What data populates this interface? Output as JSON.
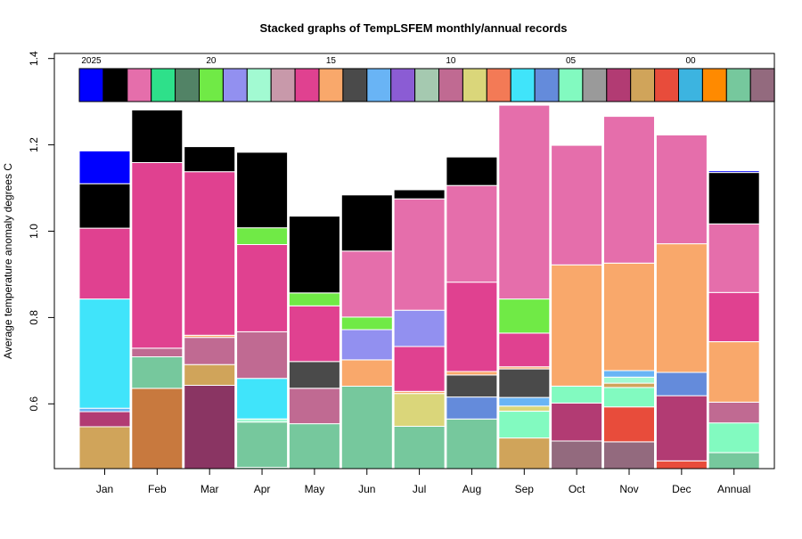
{
  "chart_data": {
    "type": "bar",
    "stacked": true,
    "title": "Stacked graphs of TempLSFEM monthly/annual records",
    "ylabel": "Average temperature anomaly degrees C",
    "xlabel": "",
    "ylim": [
      0.45,
      1.4
    ],
    "yticks": [
      "0.6",
      "0.8",
      "1.0",
      "1.2",
      "1.4"
    ],
    "categories": [
      "Jan",
      "Feb",
      "Mar",
      "Apr",
      "May",
      "Jun",
      "Jul",
      "Aug",
      "Sep",
      "Oct",
      "Nov",
      "Dec",
      "Annual"
    ],
    "legend": {
      "placement": "top",
      "year_labels": [
        "2025",
        "20",
        "15",
        "10",
        "05",
        "00"
      ],
      "colors": [
        "#0000ff",
        "#000000",
        "#e56eab",
        "#2ee08a",
        "#528366",
        "#70ea46",
        "#9290f0",
        "#a2fad2",
        "#c899aa",
        "#e04190",
        "#f9a86b",
        "#4a4a4a",
        "#69b4f5",
        "#8b5cd4",
        "#a5c9b0",
        "#c06a92",
        "#dad67a",
        "#f37a56",
        "#40e4fa",
        "#648bdb",
        "#82fac0",
        "#9a9a9a",
        "#b23b73",
        "#d0a45a",
        "#e84c3b",
        "#3cb4e0",
        "#ff8a00",
        "#76c89d",
        "#936a7e"
      ]
    },
    "stacks": [
      {
        "category": "Jan",
        "segments": [
          {
            "from": 0.45,
            "to": 0.547,
            "color": "#d0a45a"
          },
          {
            "from": 0.547,
            "to": 0.582,
            "color": "#b23b73"
          },
          {
            "from": 0.582,
            "to": 0.59,
            "color": "#69b4f5"
          },
          {
            "from": 0.59,
            "to": 0.843,
            "color": "#40e4fa"
          },
          {
            "from": 0.843,
            "to": 1.007,
            "color": "#e04190"
          },
          {
            "from": 1.007,
            "to": 1.11,
            "color": "#000000"
          },
          {
            "from": 1.11,
            "to": 1.186,
            "color": "#0000ff"
          }
        ]
      },
      {
        "category": "Feb",
        "segments": [
          {
            "from": 0.45,
            "to": 0.636,
            "color": "#c8793e"
          },
          {
            "from": 0.636,
            "to": 0.709,
            "color": "#76c89d"
          },
          {
            "from": 0.709,
            "to": 0.729,
            "color": "#c06a92"
          },
          {
            "from": 0.729,
            "to": 1.159,
            "color": "#e04190"
          },
          {
            "from": 1.159,
            "to": 1.281,
            "color": "#000000"
          }
        ]
      },
      {
        "category": "Mar",
        "segments": [
          {
            "from": 0.45,
            "to": 0.643,
            "color": "#8a3563"
          },
          {
            "from": 0.643,
            "to": 0.691,
            "color": "#d0a45a"
          },
          {
            "from": 0.691,
            "to": 0.754,
            "color": "#c06a92"
          },
          {
            "from": 0.754,
            "to": 0.759,
            "color": "#f9a86b"
          },
          {
            "from": 0.759,
            "to": 1.138,
            "color": "#e04190"
          },
          {
            "from": 1.138,
            "to": 1.196,
            "color": "#000000"
          }
        ]
      },
      {
        "category": "Apr",
        "segments": [
          {
            "from": 0.45,
            "to": 0.453,
            "color": "#82fac0"
          },
          {
            "from": 0.453,
            "to": 0.558,
            "color": "#76c89d"
          },
          {
            "from": 0.558,
            "to": 0.565,
            "color": "#a2fad2"
          },
          {
            "from": 0.565,
            "to": 0.659,
            "color": "#40e4fa"
          },
          {
            "from": 0.659,
            "to": 0.767,
            "color": "#c06a92"
          },
          {
            "from": 0.767,
            "to": 0.969,
            "color": "#e04190"
          },
          {
            "from": 0.969,
            "to": 1.008,
            "color": "#70ea46"
          },
          {
            "from": 1.008,
            "to": 1.183,
            "color": "#000000"
          }
        ]
      },
      {
        "category": "May",
        "segments": [
          {
            "from": 0.45,
            "to": 0.554,
            "color": "#76c89d"
          },
          {
            "from": 0.554,
            "to": 0.636,
            "color": "#c06a92"
          },
          {
            "from": 0.636,
            "to": 0.698,
            "color": "#4a4a4a"
          },
          {
            "from": 0.698,
            "to": 0.827,
            "color": "#e04190"
          },
          {
            "from": 0.827,
            "to": 0.857,
            "color": "#70ea46"
          },
          {
            "from": 0.857,
            "to": 1.035,
            "color": "#000000"
          }
        ]
      },
      {
        "category": "Jun",
        "segments": [
          {
            "from": 0.45,
            "to": 0.641,
            "color": "#76c89d"
          },
          {
            "from": 0.641,
            "to": 0.702,
            "color": "#f9a86b"
          },
          {
            "from": 0.702,
            "to": 0.772,
            "color": "#9290f0"
          },
          {
            "from": 0.772,
            "to": 0.801,
            "color": "#70ea46"
          },
          {
            "from": 0.801,
            "to": 0.954,
            "color": "#e56eab"
          },
          {
            "from": 0.954,
            "to": 1.084,
            "color": "#000000"
          }
        ]
      },
      {
        "category": "Jul",
        "segments": [
          {
            "from": 0.45,
            "to": 0.548,
            "color": "#76c89d"
          },
          {
            "from": 0.548,
            "to": 0.624,
            "color": "#dad67a"
          },
          {
            "from": 0.624,
            "to": 0.629,
            "color": "#f9a86b"
          },
          {
            "from": 0.629,
            "to": 0.733,
            "color": "#e04190"
          },
          {
            "from": 0.733,
            "to": 0.817,
            "color": "#9290f0"
          },
          {
            "from": 0.817,
            "to": 1.075,
            "color": "#e56eab"
          },
          {
            "from": 1.075,
            "to": 1.096,
            "color": "#000000"
          }
        ]
      },
      {
        "category": "Aug",
        "segments": [
          {
            "from": 0.45,
            "to": 0.565,
            "color": "#76c89d"
          },
          {
            "from": 0.565,
            "to": 0.616,
            "color": "#648bdb"
          },
          {
            "from": 0.616,
            "to": 0.667,
            "color": "#4a4a4a"
          },
          {
            "from": 0.667,
            "to": 0.675,
            "color": "#f9a86b"
          },
          {
            "from": 0.675,
            "to": 0.882,
            "color": "#e04190"
          },
          {
            "from": 0.882,
            "to": 1.106,
            "color": "#e56eab"
          },
          {
            "from": 1.106,
            "to": 1.172,
            "color": "#000000"
          }
        ]
      },
      {
        "category": "Sep",
        "segments": [
          {
            "from": 0.45,
            "to": 0.521,
            "color": "#d0a45a"
          },
          {
            "from": 0.521,
            "to": 0.583,
            "color": "#82fac0"
          },
          {
            "from": 0.583,
            "to": 0.595,
            "color": "#dad67a"
          },
          {
            "from": 0.595,
            "to": 0.615,
            "color": "#69b4f5"
          },
          {
            "from": 0.615,
            "to": 0.681,
            "color": "#4a4a4a"
          },
          {
            "from": 0.681,
            "to": 0.686,
            "color": "#f9a86b"
          },
          {
            "from": 0.686,
            "to": 0.764,
            "color": "#e04190"
          },
          {
            "from": 0.764,
            "to": 0.843,
            "color": "#70ea46"
          },
          {
            "from": 0.843,
            "to": 1.292,
            "color": "#e56eab"
          }
        ]
      },
      {
        "category": "Oct",
        "segments": [
          {
            "from": 0.45,
            "to": 0.514,
            "color": "#936a7e"
          },
          {
            "from": 0.514,
            "to": 0.602,
            "color": "#b23b73"
          },
          {
            "from": 0.602,
            "to": 0.641,
            "color": "#82fac0"
          },
          {
            "from": 0.641,
            "to": 0.922,
            "color": "#f9a86b"
          },
          {
            "from": 0.922,
            "to": 1.199,
            "color": "#e56eab"
          }
        ]
      },
      {
        "category": "Nov",
        "segments": [
          {
            "from": 0.45,
            "to": 0.512,
            "color": "#936a7e"
          },
          {
            "from": 0.512,
            "to": 0.593,
            "color": "#e84c3b"
          },
          {
            "from": 0.593,
            "to": 0.638,
            "color": "#82fac0"
          },
          {
            "from": 0.638,
            "to": 0.648,
            "color": "#d0a45a"
          },
          {
            "from": 0.648,
            "to": 0.662,
            "color": "#a2fad2"
          },
          {
            "from": 0.662,
            "to": 0.677,
            "color": "#69b4f5"
          },
          {
            "from": 0.677,
            "to": 0.926,
            "color": "#f9a86b"
          },
          {
            "from": 0.926,
            "to": 1.266,
            "color": "#e56eab"
          }
        ]
      },
      {
        "category": "Dec",
        "segments": [
          {
            "from": 0.45,
            "to": 0.468,
            "color": "#e84c3b"
          },
          {
            "from": 0.468,
            "to": 0.619,
            "color": "#b23b73"
          },
          {
            "from": 0.619,
            "to": 0.673,
            "color": "#648bdb"
          },
          {
            "from": 0.673,
            "to": 0.971,
            "color": "#f9a86b"
          },
          {
            "from": 0.971,
            "to": 1.223,
            "color": "#e56eab"
          }
        ]
      },
      {
        "category": "Annual",
        "segments": [
          {
            "from": 0.45,
            "to": 0.487,
            "color": "#76c89d"
          },
          {
            "from": 0.487,
            "to": 0.556,
            "color": "#82fac0"
          },
          {
            "from": 0.556,
            "to": 0.604,
            "color": "#c06a92"
          },
          {
            "from": 0.604,
            "to": 0.744,
            "color": "#f9a86b"
          },
          {
            "from": 0.744,
            "to": 0.858,
            "color": "#e04190"
          },
          {
            "from": 0.858,
            "to": 1.017,
            "color": "#e56eab"
          },
          {
            "from": 1.017,
            "to": 1.136,
            "color": "#000000"
          },
          {
            "from": 1.136,
            "to": 1.14,
            "color": "#0000ff"
          }
        ]
      }
    ]
  }
}
